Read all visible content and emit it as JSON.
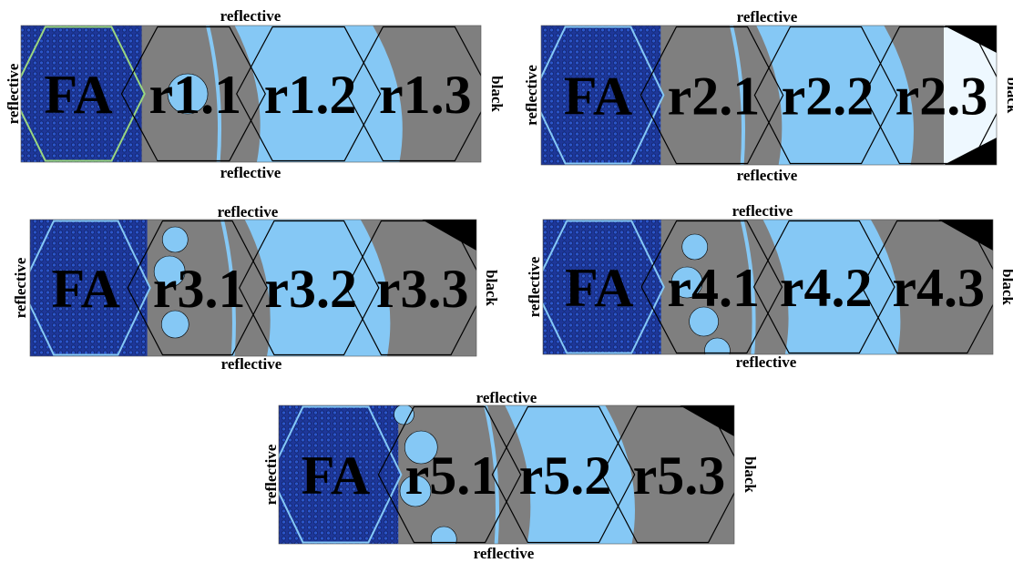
{
  "colors": {
    "fuel_dark": "#1e3799",
    "fuel_pin": "#2b55c8",
    "moderator_light": "#85c8f5",
    "moderator_pale": "#eef8ff",
    "reflector_gray": "#7f7f7f",
    "boundary_black": "#000000",
    "outline": "#000000",
    "ring_green": "#9ad67f"
  },
  "legend_icons": {
    "fuel_assembly": "fa-icon",
    "hex_cell": "hex-cell-icon"
  },
  "panels": [
    {
      "id": "p1",
      "top_label": "reflective",
      "bottom_label": "reflective",
      "left_label": "reflective",
      "right_label": "black",
      "regions": [
        "FA",
        "r1.1",
        "r1.2",
        "r1.3"
      ]
    },
    {
      "id": "p2",
      "top_label": "reflective",
      "bottom_label": "reflective",
      "left_label": "reflective",
      "right_label": "black",
      "regions": [
        "FA",
        "r2.1",
        "r2.2",
        "r2.3"
      ]
    },
    {
      "id": "p3",
      "top_label": "reflective",
      "bottom_label": "reflective",
      "left_label": "reflective",
      "right_label": "black",
      "regions": [
        "FA",
        "r3.1",
        "r3.2",
        "r3.3"
      ]
    },
    {
      "id": "p4",
      "top_label": "reflective",
      "bottom_label": "reflective",
      "left_label": "reflective",
      "right_label": "black",
      "regions": [
        "FA",
        "r4.1",
        "r4.2",
        "r4.3"
      ]
    },
    {
      "id": "p5",
      "top_label": "reflective",
      "bottom_label": "reflective",
      "left_label": "reflective",
      "right_label": "black",
      "regions": [
        "FA",
        "r5.1",
        "r5.2",
        "r5.3"
      ]
    }
  ]
}
